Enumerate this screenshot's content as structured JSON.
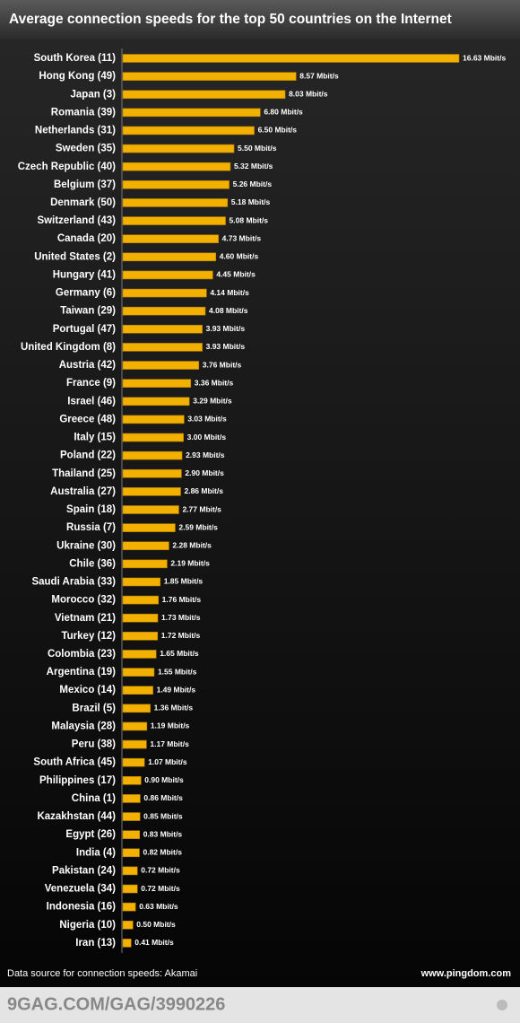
{
  "chart_data": {
    "type": "hbar",
    "title": "Average connection speeds for the top 50 countries on the Internet",
    "categories": [
      "South Korea (11)",
      "Hong Kong (49)",
      "Japan (3)",
      "Romania (39)",
      "Netherlands (31)",
      "Sweden (35)",
      "Czech Republic (40)",
      "Belgium (37)",
      "Denmark (50)",
      "Switzerland (43)",
      "Canada (20)",
      "United States (2)",
      "Hungary (41)",
      "Germany (6)",
      "Taiwan (29)",
      "Portugal (47)",
      "United Kingdom (8)",
      "Austria (42)",
      "France (9)",
      "Israel (46)",
      "Greece (48)",
      "Italy (15)",
      "Poland (22)",
      "Thailand (25)",
      "Australia (27)",
      "Spain (18)",
      "Russia (7)",
      "Ukraine (30)",
      "Chile (36)",
      "Saudi Arabia (33)",
      "Morocco (32)",
      "Vietnam (21)",
      "Turkey (12)",
      "Colombia (23)",
      "Argentina (19)",
      "Mexico (14)",
      "Brazil (5)",
      "Malaysia (28)",
      "Peru (38)",
      "South Africa (45)",
      "Philippines (17)",
      "China (1)",
      "Kazakhstan (44)",
      "Egypt (26)",
      "India (4)",
      "Pakistan (24)",
      "Venezuela (34)",
      "Indonesia (16)",
      "Nigeria (10)",
      "Iran (13)"
    ],
    "values": [
      16.63,
      8.57,
      8.03,
      6.8,
      6.5,
      5.5,
      5.32,
      5.26,
      5.18,
      5.08,
      4.73,
      4.6,
      4.45,
      4.14,
      4.08,
      3.93,
      3.93,
      3.76,
      3.36,
      3.29,
      3.03,
      3.0,
      2.93,
      2.9,
      2.86,
      2.77,
      2.59,
      2.28,
      2.19,
      1.85,
      1.76,
      1.73,
      1.72,
      1.65,
      1.55,
      1.49,
      1.36,
      1.19,
      1.17,
      1.07,
      0.9,
      0.86,
      0.85,
      0.83,
      0.82,
      0.72,
      0.72,
      0.63,
      0.5,
      0.41
    ],
    "value_labels": [
      "16.63 Mbit/s",
      "8.57 Mbit/s",
      "8.03 Mbit/s",
      "6.80 Mbit/s",
      "6.50 Mbit/s",
      "5.50 Mbit/s",
      "5.32 Mbit/s",
      "5.26 Mbit/s",
      "5.18 Mbit/s",
      "5.08 Mbit/s",
      "4.73 Mbit/s",
      "4.60 Mbit/s",
      "4.45 Mbit/s",
      "4.14 Mbit/s",
      "4.08 Mbit/s",
      "3.93 Mbit/s",
      "3.93 Mbit/s",
      "3.76 Mbit/s",
      "3.36 Mbit/s",
      "3.29 Mbit/s",
      "3.03 Mbit/s",
      "3.00 Mbit/s",
      "2.93 Mbit/s",
      "2.90 Mbit/s",
      "2.86 Mbit/s",
      "2.77 Mbit/s",
      "2.59 Mbit/s",
      "2.28 Mbit/s",
      "2.19 Mbit/s",
      "1.85 Mbit/s",
      "1.76 Mbit/s",
      "1.73 Mbit/s",
      "1.72 Mbit/s",
      "1.65 Mbit/s",
      "1.55 Mbit/s",
      "1.49 Mbit/s",
      "1.36 Mbit/s",
      "1.19 Mbit/s",
      "1.17 Mbit/s",
      "1.07 Mbit/s",
      "0.90 Mbit/s",
      "0.86 Mbit/s",
      "0.85 Mbit/s",
      "0.83 Mbit/s",
      "0.82 Mbit/s",
      "0.72 Mbit/s",
      "0.72 Mbit/s",
      "0.63 Mbit/s",
      "0.50 Mbit/s",
      "0.41 Mbit/s"
    ],
    "color": "#f2b000"
  },
  "footer": {
    "source": "Data source for connection speeds: Akamai",
    "site": "www.pingdom.com",
    "watermark": "9GAG.COM/GAG/3990226"
  }
}
